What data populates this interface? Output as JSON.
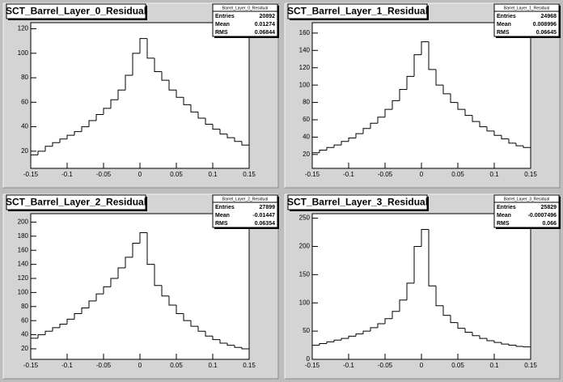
{
  "chart_data": [
    {
      "type": "histogram",
      "title": "SCT_Barrel_Layer_0_Residual",
      "color": "#000000",
      "stats": {
        "title": "Barrel_Layer_0_Residual",
        "rows": [
          {
            "label": "Entries",
            "value": "20892"
          },
          {
            "label": "Mean",
            "value": "0.01274"
          },
          {
            "label": "RMS",
            "value": "0.06844"
          }
        ]
      },
      "bins": [
        -0.15,
        -0.14,
        -0.13,
        -0.12,
        -0.11,
        -0.1,
        -0.09,
        -0.08,
        -0.07,
        -0.06,
        -0.05,
        -0.04,
        -0.03,
        -0.02,
        -0.01,
        0,
        0.01,
        0.02,
        0.03,
        0.04,
        0.05,
        0.06,
        0.07,
        0.08,
        0.09,
        0.1,
        0.11,
        0.12,
        0.13,
        0.14,
        0.15
      ],
      "values": [
        17,
        20,
        24,
        27,
        30,
        33,
        36,
        40,
        45,
        50,
        55,
        62,
        70,
        82,
        100,
        112,
        96,
        85,
        78,
        70,
        64,
        58,
        52,
        47,
        42,
        38,
        34,
        31,
        28,
        25
      ],
      "xlim": [
        -0.15,
        0.15
      ],
      "xticks": [
        -0.15,
        -0.1,
        -0.05,
        0,
        0.05,
        0.1,
        0.15
      ],
      "ylim": [
        6,
        125
      ],
      "yticks": [
        20,
        40,
        60,
        80,
        100,
        120
      ]
    },
    {
      "type": "histogram",
      "title": "SCT_Barrel_Layer_1_Residual",
      "color": "#000000",
      "stats": {
        "title": "Barrel_Layer_1_Residual",
        "rows": [
          {
            "label": "Entries",
            "value": "24968"
          },
          {
            "label": "Mean",
            "value": "0.008996"
          },
          {
            "label": "RMS",
            "value": "0.06645"
          }
        ]
      },
      "bins": [
        -0.15,
        -0.14,
        -0.13,
        -0.12,
        -0.11,
        -0.1,
        -0.09,
        -0.08,
        -0.07,
        -0.06,
        -0.05,
        -0.04,
        -0.03,
        -0.02,
        -0.01,
        0,
        0.01,
        0.02,
        0.03,
        0.04,
        0.05,
        0.06,
        0.07,
        0.08,
        0.09,
        0.1,
        0.11,
        0.12,
        0.13,
        0.14,
        0.15
      ],
      "values": [
        22,
        25,
        28,
        31,
        35,
        39,
        44,
        50,
        56,
        63,
        72,
        82,
        95,
        110,
        135,
        150,
        118,
        100,
        90,
        80,
        72,
        65,
        58,
        52,
        47,
        42,
        38,
        33,
        30,
        28
      ],
      "xlim": [
        -0.15,
        0.15
      ],
      "xticks": [
        -0.15,
        -0.1,
        -0.05,
        0,
        0.05,
        0.1,
        0.15
      ],
      "ylim": [
        4,
        172
      ],
      "yticks": [
        20,
        40,
        60,
        80,
        100,
        120,
        140,
        160
      ]
    },
    {
      "type": "histogram",
      "title": "SCT_Barrel_Layer_2_Residual",
      "color": "#000000",
      "stats": {
        "title": "Barrel_Layer_2_Residual",
        "rows": [
          {
            "label": "Entries",
            "value": "27899"
          },
          {
            "label": "Mean",
            "value": "-0.01447"
          },
          {
            "label": "RMS",
            "value": "0.06354"
          }
        ]
      },
      "bins": [
        -0.15,
        -0.14,
        -0.13,
        -0.12,
        -0.11,
        -0.1,
        -0.09,
        -0.08,
        -0.07,
        -0.06,
        -0.05,
        -0.04,
        -0.03,
        -0.02,
        -0.01,
        0,
        0.01,
        0.02,
        0.03,
        0.04,
        0.05,
        0.06,
        0.07,
        0.08,
        0.09,
        0.1,
        0.11,
        0.12,
        0.13,
        0.14,
        0.15
      ],
      "values": [
        35,
        40,
        45,
        50,
        55,
        62,
        70,
        78,
        88,
        98,
        108,
        120,
        135,
        150,
        170,
        185,
        140,
        110,
        95,
        82,
        70,
        60,
        52,
        45,
        38,
        33,
        28,
        25,
        22,
        20
      ],
      "xlim": [
        -0.15,
        0.15
      ],
      "xticks": [
        -0.15,
        -0.1,
        -0.05,
        0,
        0.05,
        0.1,
        0.15
      ],
      "ylim": [
        5,
        212
      ],
      "yticks": [
        20,
        40,
        60,
        80,
        100,
        120,
        140,
        160,
        180,
        200
      ]
    },
    {
      "type": "histogram",
      "title": "SCT_Barrel_Layer_3_Residual",
      "color": "#000000",
      "stats": {
        "title": "Barrel_Layer_3_Residual",
        "rows": [
          {
            "label": "Entries",
            "value": "25829"
          },
          {
            "label": "Mean",
            "value": "-0.0007496"
          },
          {
            "label": "RMS",
            "value": "0.066"
          }
        ]
      },
      "bins": [
        -0.15,
        -0.14,
        -0.13,
        -0.12,
        -0.11,
        -0.1,
        -0.09,
        -0.08,
        -0.07,
        -0.06,
        -0.05,
        -0.04,
        -0.03,
        -0.02,
        -0.01,
        0,
        0.01,
        0.02,
        0.03,
        0.04,
        0.05,
        0.06,
        0.07,
        0.08,
        0.09,
        0.1,
        0.11,
        0.12,
        0.13,
        0.14,
        0.15
      ],
      "values": [
        25,
        28,
        31,
        34,
        37,
        41,
        45,
        50,
        56,
        63,
        72,
        85,
        105,
        135,
        200,
        230,
        130,
        95,
        78,
        65,
        55,
        48,
        42,
        37,
        33,
        30,
        27,
        25,
        23,
        22
      ],
      "xlim": [
        -0.15,
        0.15
      ],
      "xticks": [
        -0.15,
        -0.1,
        -0.05,
        0,
        0.05,
        0.1,
        0.15
      ],
      "ylim": [
        0,
        258
      ],
      "yticks": [
        0,
        50,
        100,
        150,
        200,
        250
      ]
    }
  ]
}
